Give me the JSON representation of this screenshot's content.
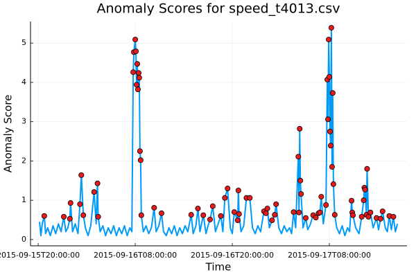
{
  "chart_data": {
    "type": "line",
    "title": "Anomaly Scores for speed_t4013.csv",
    "x_label": "Time",
    "y_label": "Anomaly Score",
    "xlim": [
      "2015-09-15T19:03:00",
      "2015-09-17T17:36:00"
    ],
    "xticks": [
      "2015-09-15T20:00:00",
      "2015-09-16T08:00:00",
      "2015-09-16T20:00:00",
      "2015-09-17T08:00:00"
    ],
    "ylim": [
      -0.16,
      5.55
    ],
    "yticks": [
      0,
      1,
      2,
      3,
      4,
      5
    ],
    "grid": true,
    "series": [
      {
        "type": "line",
        "color": "#009af9",
        "x": [
          "2015-09-15T20:10:00",
          "2015-09-15T20:20:00",
          "2015-09-15T20:30:00",
          "2015-09-15T20:45:00",
          "2015-09-15T20:55:00",
          "2015-09-15T21:10:00",
          "2015-09-15T21:30:00",
          "2015-09-15T21:50:00",
          "2015-09-15T22:10:00",
          "2015-09-15T22:30:00",
          "2015-09-15T22:50:00",
          "2015-09-15T23:10:00",
          "2015-09-15T23:25:00",
          "2015-09-15T23:40:00",
          "2015-09-15T23:55:00",
          "2015-09-16T00:00:00",
          "2015-09-16T00:15:00",
          "2015-09-16T00:35:00",
          "2015-09-16T00:55:00",
          "2015-09-16T01:10:00",
          "2015-09-16T01:20:00",
          "2015-09-16T01:35:00",
          "2015-09-16T01:50:00",
          "2015-09-16T02:10:00",
          "2015-09-16T02:30:00",
          "2015-09-16T02:55:00",
          "2015-09-16T03:10:00",
          "2015-09-16T03:20:00",
          "2015-09-16T03:25:00",
          "2015-09-16T03:40:00",
          "2015-09-16T04:00:00",
          "2015-09-16T04:20:00",
          "2015-09-16T04:40:00",
          "2015-09-16T05:00:00",
          "2015-09-16T05:20:00",
          "2015-09-16T05:40:00",
          "2015-09-16T06:00:00",
          "2015-09-16T06:20:00",
          "2015-09-16T06:40:00",
          "2015-09-16T07:00:00",
          "2015-09-16T07:20:00",
          "2015-09-16T07:35:00",
          "2015-09-16T07:45:00",
          "2015-09-16T07:50:00",
          "2015-09-16T08:00:00",
          "2015-09-16T08:05:00",
          "2015-09-16T08:10:00",
          "2015-09-16T08:15:00",
          "2015-09-16T08:20:00",
          "2015-09-16T08:25:00",
          "2015-09-16T08:30:00",
          "2015-09-16T08:35:00",
          "2015-09-16T08:40:00",
          "2015-09-16T08:45:00",
          "2015-09-16T09:00:00",
          "2015-09-16T09:20:00",
          "2015-09-16T09:40:00",
          "2015-09-16T10:00:00",
          "2015-09-16T10:20:00",
          "2015-09-16T10:35:00",
          "2015-09-16T10:55:00",
          "2015-09-16T11:15:00",
          "2015-09-16T11:30:00",
          "2015-09-16T11:50:00",
          "2015-09-16T12:10:00",
          "2015-09-16T12:30:00",
          "2015-09-16T12:50:00",
          "2015-09-16T13:10:00",
          "2015-09-16T13:30:00",
          "2015-09-16T13:50:00",
          "2015-09-16T14:10:00",
          "2015-09-16T14:30:00",
          "2015-09-16T14:55:00",
          "2015-09-16T15:10:00",
          "2015-09-16T15:30:00",
          "2015-09-16T15:45:00",
          "2015-09-16T16:00:00",
          "2015-09-16T16:25:00",
          "2015-09-16T16:45:00",
          "2015-09-16T17:00:00",
          "2015-09-16T17:15:00",
          "2015-09-16T17:35:00",
          "2015-09-16T17:55:00",
          "2015-09-16T18:15:00",
          "2015-09-16T18:35:00",
          "2015-09-16T18:50:00",
          "2015-09-16T19:05:00",
          "2015-09-16T19:25:00",
          "2015-09-16T19:45:00",
          "2015-09-16T20:00:00",
          "2015-09-16T20:15:00",
          "2015-09-16T20:40:00",
          "2015-09-16T20:45:00",
          "2015-09-16T20:50:00",
          "2015-09-16T21:05:00",
          "2015-09-16T21:25:00",
          "2015-09-16T21:45:00",
          "2015-09-16T22:10:00",
          "2015-09-16T22:30:00",
          "2015-09-16T22:50:00",
          "2015-09-16T23:10:00",
          "2015-09-16T23:30:00",
          "2015-09-16T23:55:00",
          "2015-09-17T00:10:00",
          "2015-09-17T00:20:00",
          "2015-09-17T00:35:00",
          "2015-09-17T00:55:00",
          "2015-09-17T01:15:00",
          "2015-09-17T01:25:00",
          "2015-09-17T01:45:00",
          "2015-09-17T02:05:00",
          "2015-09-17T02:25:00",
          "2015-09-17T02:45:00",
          "2015-09-17T03:05:00",
          "2015-09-17T03:20:00",
          "2015-09-17T03:35:00",
          "2015-09-17T03:50:00",
          "2015-09-17T04:10:00",
          "2015-09-17T04:15:00",
          "2015-09-17T04:20:00",
          "2015-09-17T04:25:00",
          "2015-09-17T04:30:00",
          "2015-09-17T04:45:00",
          "2015-09-17T05:05:00",
          "2015-09-17T05:20:00",
          "2015-09-17T05:40:00",
          "2015-09-17T06:00:00",
          "2015-09-17T06:20:00",
          "2015-09-17T06:40:00",
          "2015-09-17T06:50:00",
          "2015-09-17T07:00:00",
          "2015-09-17T07:15:00",
          "2015-09-17T07:35:00",
          "2015-09-17T07:45:00",
          "2015-09-17T07:50:00",
          "2015-09-17T07:55:00",
          "2015-09-17T08:00:00",
          "2015-09-17T08:05:00",
          "2015-09-17T08:10:00",
          "2015-09-17T08:15:00",
          "2015-09-17T08:20:00",
          "2015-09-17T08:25:00",
          "2015-09-17T08:30:00",
          "2015-09-17T08:40:00",
          "2015-09-17T08:55:00",
          "2015-09-17T09:15:00",
          "2015-09-17T09:35:00",
          "2015-09-17T09:55:00",
          "2015-09-17T10:15:00",
          "2015-09-17T10:30:00",
          "2015-09-17T10:45:00",
          "2015-09-17T10:50:00",
          "2015-09-17T10:55:00",
          "2015-09-17T11:15:00",
          "2015-09-17T11:40:00",
          "2015-09-17T12:00:00",
          "2015-09-17T12:15:00",
          "2015-09-17T12:20:00",
          "2015-09-17T12:25:00",
          "2015-09-17T12:35:00",
          "2015-09-17T12:40:00",
          "2015-09-17T12:50:00",
          "2015-09-17T13:05:00",
          "2015-09-17T13:25:00",
          "2015-09-17T13:50:00",
          "2015-09-17T14:05:00",
          "2015-09-17T14:20:00",
          "2015-09-17T14:35:00",
          "2015-09-17T14:55:00",
          "2015-09-17T15:10:00",
          "2015-09-17T15:25:00",
          "2015-09-17T15:40:00",
          "2015-09-17T15:55:00",
          "2015-09-17T16:10:00",
          "2015-09-17T16:25:00"
        ],
        "values": [
          0.45,
          0.1,
          0.4,
          0.6,
          0.15,
          0.3,
          0.1,
          0.35,
          0.15,
          0.4,
          0.2,
          0.58,
          0.2,
          0.3,
          0.53,
          0.93,
          0.2,
          0.4,
          0.15,
          0.9,
          1.64,
          0.62,
          0.3,
          0.1,
          0.35,
          1.21,
          0.4,
          1.43,
          0.58,
          0.2,
          0.35,
          0.1,
          0.3,
          0.15,
          0.35,
          0.1,
          0.3,
          0.15,
          0.35,
          0.1,
          0.3,
          0.2,
          4.26,
          4.77,
          5.09,
          4.79,
          3.94,
          4.47,
          3.82,
          4.24,
          4.12,
          2.25,
          2.02,
          0.62,
          0.2,
          0.35,
          0.15,
          0.3,
          0.81,
          0.2,
          0.35,
          0.67,
          0.2,
          0.1,
          0.3,
          0.15,
          0.35,
          0.1,
          0.3,
          0.15,
          0.35,
          0.2,
          0.63,
          0.15,
          0.35,
          0.79,
          0.2,
          0.62,
          0.15,
          0.35,
          0.51,
          0.85,
          0.2,
          0.4,
          0.6,
          0.2,
          1.06,
          1.3,
          0.3,
          0.15,
          0.7,
          0.49,
          1.25,
          0.65,
          0.2,
          0.35,
          1.06,
          1.06,
          0.3,
          0.15,
          0.35,
          0.2,
          0.72,
          0.67,
          0.79,
          0.3,
          0.49,
          0.63,
          0.9,
          0.3,
          0.15,
          0.35,
          0.2,
          0.3,
          0.15,
          0.7,
          0.3,
          2.11,
          0.69,
          2.82,
          1.5,
          1.16,
          0.3,
          0.55,
          0.25,
          0.4,
          0.62,
          0.56,
          0.67,
          0.69,
          1.09,
          0.4,
          0.88,
          4.07,
          3.06,
          5.09,
          4.14,
          2.75,
          2.39,
          5.39,
          1.85,
          3.73,
          1.41,
          0.63,
          0.3,
          0.15,
          0.35,
          0.1,
          0.3,
          0.2,
          0.99,
          0.69,
          0.62,
          0.3,
          0.15,
          0.58,
          1.0,
          1.32,
          1.27,
          0.63,
          1.8,
          0.58,
          0.69,
          0.3,
          0.55,
          0.25,
          0.53,
          0.72,
          0.3,
          0.2,
          0.6,
          0.25,
          0.58,
          0.2,
          0.4
        ]
      },
      {
        "type": "scatter",
        "color": "#e41a1c",
        "x": [
          "2015-09-15T20:45:00",
          "2015-09-15T23:10:00",
          "2015-09-15T23:55:00",
          "2015-09-16T00:00:00",
          "2015-09-16T01:10:00",
          "2015-09-16T01:20:00",
          "2015-09-16T01:35:00",
          "2015-09-16T02:55:00",
          "2015-09-16T03:20:00",
          "2015-09-16T03:25:00",
          "2015-09-16T07:45:00",
          "2015-09-16T07:50:00",
          "2015-09-16T08:00:00",
          "2015-09-16T08:05:00",
          "2015-09-16T08:10:00",
          "2015-09-16T08:15:00",
          "2015-09-16T08:20:00",
          "2015-09-16T08:25:00",
          "2015-09-16T08:30:00",
          "2015-09-16T08:35:00",
          "2015-09-16T08:40:00",
          "2015-09-16T08:45:00",
          "2015-09-16T10:20:00",
          "2015-09-16T11:15:00",
          "2015-09-16T14:55:00",
          "2015-09-16T15:45:00",
          "2015-09-16T16:25:00",
          "2015-09-16T17:15:00",
          "2015-09-16T17:35:00",
          "2015-09-16T18:35:00",
          "2015-09-16T19:05:00",
          "2015-09-16T19:25:00",
          "2015-09-16T20:15:00",
          "2015-09-16T20:40:00",
          "2015-09-16T20:45:00",
          "2015-09-16T20:50:00",
          "2015-09-16T21:45:00",
          "2015-09-16T22:10:00",
          "2015-09-16T23:55:00",
          "2015-09-17T00:10:00",
          "2015-09-17T00:20:00",
          "2015-09-17T00:55:00",
          "2015-09-17T01:15:00",
          "2015-09-17T01:25:00",
          "2015-09-17T03:35:00",
          "2015-09-17T04:10:00",
          "2015-09-17T04:15:00",
          "2015-09-17T04:20:00",
          "2015-09-17T04:25:00",
          "2015-09-17T04:30:00",
          "2015-09-17T05:05:00",
          "2015-09-17T06:00:00",
          "2015-09-17T06:20:00",
          "2015-09-17T06:40:00",
          "2015-09-17T06:50:00",
          "2015-09-17T07:00:00",
          "2015-09-17T07:35:00",
          "2015-09-17T07:45:00",
          "2015-09-17T07:50:00",
          "2015-09-17T07:55:00",
          "2015-09-17T08:00:00",
          "2015-09-17T08:05:00",
          "2015-09-17T08:10:00",
          "2015-09-17T08:15:00",
          "2015-09-17T08:20:00",
          "2015-09-17T08:25:00",
          "2015-09-17T08:30:00",
          "2015-09-17T08:40:00",
          "2015-09-17T10:45:00",
          "2015-09-17T10:50:00",
          "2015-09-17T10:55:00",
          "2015-09-17T12:00:00",
          "2015-09-17T12:15:00",
          "2015-09-17T12:20:00",
          "2015-09-17T12:25:00",
          "2015-09-17T12:35:00",
          "2015-09-17T12:40:00",
          "2015-09-17T12:50:00",
          "2015-09-17T13:05:00",
          "2015-09-17T13:50:00",
          "2015-09-17T14:20:00",
          "2015-09-17T14:35:00",
          "2015-09-17T15:25:00",
          "2015-09-17T15:55:00"
        ],
        "values": [
          0.6,
          0.58,
          0.53,
          0.93,
          0.9,
          1.64,
          0.62,
          1.21,
          1.43,
          0.58,
          4.26,
          4.77,
          5.09,
          4.79,
          3.94,
          4.47,
          3.82,
          4.24,
          4.12,
          2.25,
          2.02,
          0.62,
          0.81,
          0.67,
          0.63,
          0.79,
          0.62,
          0.51,
          0.85,
          0.6,
          1.06,
          1.3,
          0.7,
          0.49,
          1.25,
          0.65,
          1.06,
          1.06,
          0.72,
          0.67,
          0.79,
          0.49,
          0.63,
          0.9,
          0.7,
          2.11,
          0.69,
          2.82,
          1.5,
          1.16,
          0.55,
          0.62,
          0.56,
          0.67,
          0.69,
          1.09,
          0.88,
          4.07,
          3.06,
          5.09,
          4.14,
          2.75,
          2.39,
          5.39,
          1.85,
          3.73,
          1.41,
          0.63,
          0.99,
          0.69,
          0.62,
          0.58,
          1.0,
          1.32,
          1.27,
          0.63,
          1.8,
          0.58,
          0.69,
          0.55,
          0.53,
          0.72,
          0.6,
          0.58
        ]
      }
    ]
  }
}
